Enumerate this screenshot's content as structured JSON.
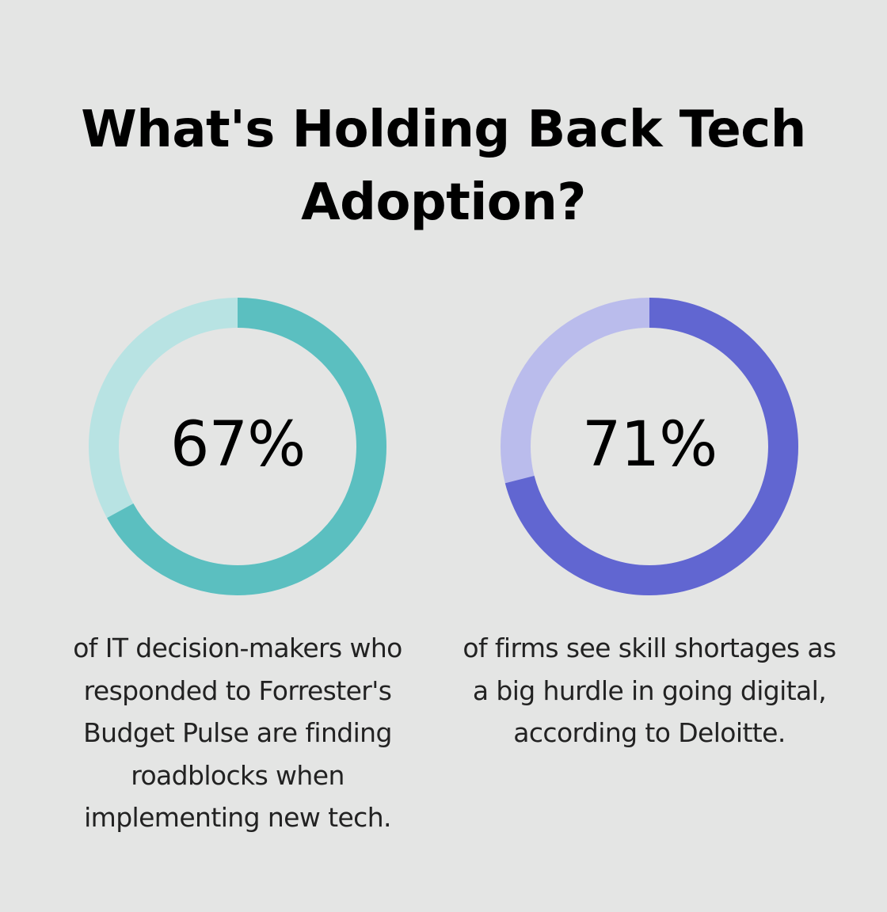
{
  "title": "What's Holding Back Tech Adoption?",
  "chart_data": [
    {
      "type": "pie",
      "value": 67,
      "label": "67%",
      "description": "of IT decision-makers who responded to Forrester's Budget Pulse are finding roadblocks when implementing new tech.",
      "colors": {
        "filled": "#5bbfc0",
        "track": "#b8e3e3"
      }
    },
    {
      "type": "pie",
      "value": 71,
      "label": "71%",
      "description": "of firms see skill shortages as a big hurdle in going digital, according to Deloitte.",
      "colors": {
        "filled": "#6166d1",
        "track": "#babcec"
      }
    }
  ]
}
